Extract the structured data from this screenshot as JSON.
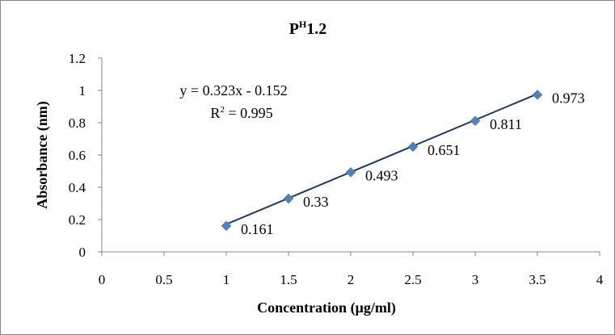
{
  "chart_data": {
    "type": "scatter",
    "title": {
      "base": "P",
      "superscript": "H",
      "rest": "1.2"
    },
    "xlabel": "Concentration (µg/ml)",
    "ylabel": "Absorbance (nm)",
    "xlim": [
      0,
      4
    ],
    "ylim": [
      0,
      1.2
    ],
    "x_ticks": [
      "0",
      "0.5",
      "1",
      "1.5",
      "2",
      "2.5",
      "3",
      "3.5",
      "4"
    ],
    "y_ticks": [
      "0",
      "0.2",
      "0.4",
      "0.6",
      "0.8",
      "1",
      "1.2"
    ],
    "series": [
      {
        "x": [
          1,
          1.5,
          2,
          2.5,
          3,
          3.5
        ],
        "y": [
          0.161,
          0.33,
          0.493,
          0.651,
          0.811,
          0.973
        ],
        "labels": [
          "0.161",
          "0.33",
          "0.493",
          "0.651",
          "0.811",
          "0.973"
        ],
        "marker": "diamond",
        "color": "#4f81bd"
      }
    ],
    "trendline": {
      "slope": 0.323,
      "intercept": -0.152,
      "equation": "y = 0.323x - 0.152",
      "r2": {
        "base": "R",
        "superscript": "2",
        "rest": " = 0.995"
      },
      "color": "#1f3864"
    },
    "grid": false,
    "legend": "none"
  }
}
